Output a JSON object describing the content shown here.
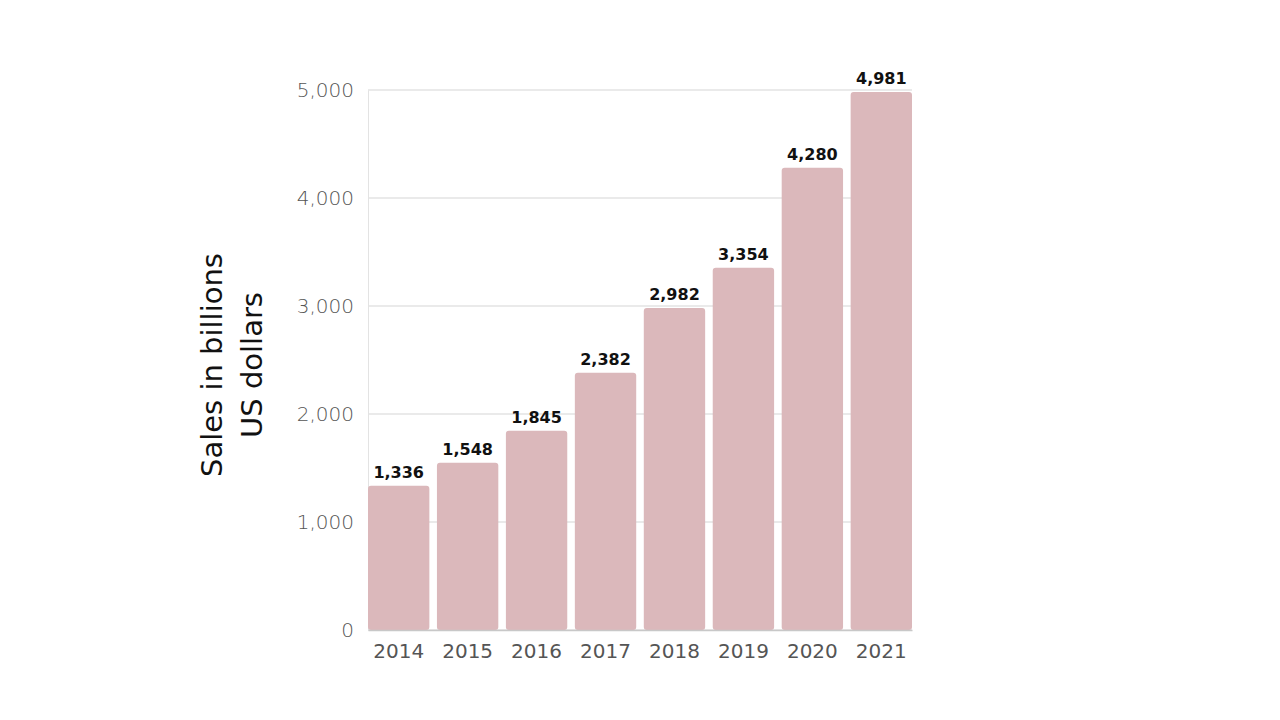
{
  "chart_data": {
    "type": "bar",
    "y_label": "Sales in billions\nUS dollars",
    "categories": [
      "2014",
      "2015",
      "2016",
      "2017",
      "2018",
      "2019",
      "2020",
      "2021"
    ],
    "values": [
      1336,
      1548,
      1845,
      2382,
      2982,
      3354,
      4280,
      4981
    ],
    "value_labels": [
      "1,336",
      "1,548",
      "1,845",
      "2,382",
      "2,982",
      "3,354",
      "4,280",
      "4,981"
    ],
    "color": "#dbb8bb",
    "ylim": [
      0,
      5000
    ],
    "yticks": [
      0,
      {
        "value": 1000,
        "label": "1,000"
      },
      {
        "value": 2000,
        "label": "2,000"
      },
      {
        "value": 3000,
        "label": "3,000"
      },
      {
        "value": 4000,
        "label": "4,000"
      },
      {
        "value": 5000,
        "label": "5,000"
      }
    ],
    "grid": true,
    "data_labels": true
  }
}
